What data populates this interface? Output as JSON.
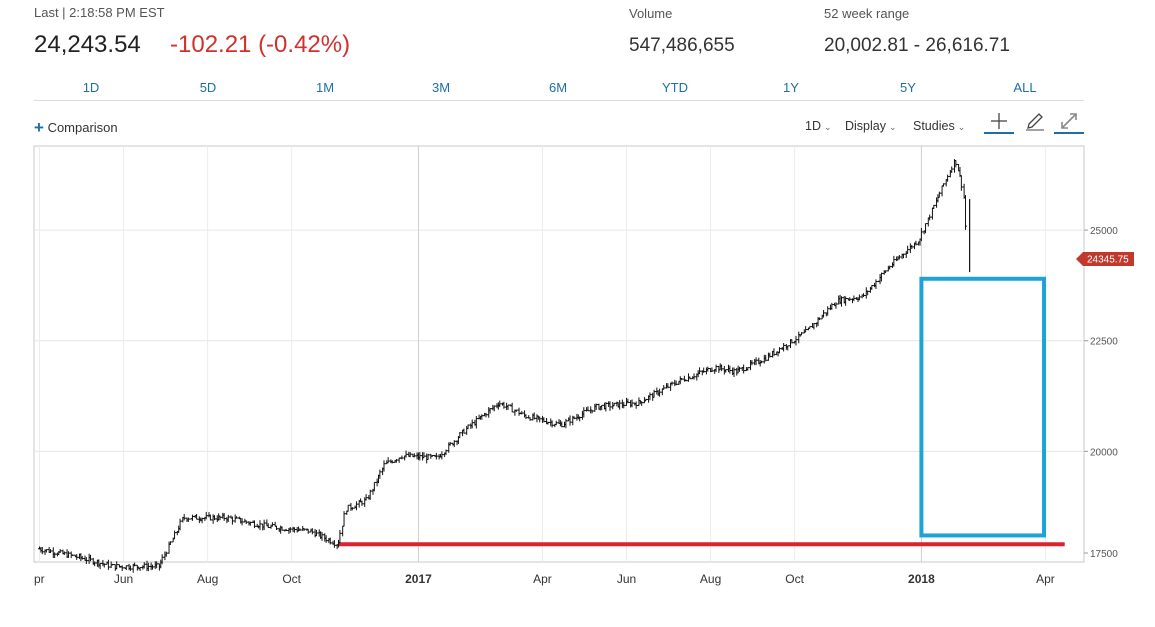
{
  "header": {
    "last_label": "Last | 2:18:58 PM EST",
    "price": "24,243.54",
    "change": "-102.21 (-0.42%)",
    "volume_label": "Volume",
    "volume": "547,486,655",
    "range_label": "52 week range",
    "range": "20,002.81 - 26,616.71"
  },
  "ranges": [
    "1D",
    "5D",
    "1M",
    "3M",
    "6M",
    "YTD",
    "1Y",
    "5Y",
    "ALL"
  ],
  "toolbar": {
    "comparison": "Comparison",
    "interval": "1D",
    "display": "Display",
    "studies": "Studies"
  },
  "colors": {
    "change": "#d0312d",
    "accent": "#1d6fa5",
    "price_tag": "#c0392b",
    "annotation_box": "#1ea3d8",
    "annotation_line": "#d9232e"
  },
  "chart_data": {
    "type": "line",
    "y_ticks": [
      "25000",
      "22500",
      "20000",
      "17500"
    ],
    "x_ticks": [
      "pr",
      "Jun",
      "Aug",
      "Oct",
      "2017",
      "Apr",
      "Jun",
      "Aug",
      "Oct",
      "2018",
      "Apr"
    ],
    "ylim": [
      17500,
      26900
    ],
    "price_tag": "24345.75",
    "series": [
      {
        "x": [
          "2016-04-01",
          "2016-05-01",
          "2016-05-25",
          "2016-06-27",
          "2016-07-15",
          "2016-08-15",
          "2016-09-15",
          "2016-10-15",
          "2016-11-04",
          "2016-11-10",
          "2016-11-25",
          "2016-12-08",
          "2016-12-20",
          "2017-01-15",
          "2017-02-05",
          "2017-03-01",
          "2017-03-20",
          "2017-04-15",
          "2017-05-10",
          "2017-06-10",
          "2017-07-10",
          "2017-08-05",
          "2017-08-20",
          "2017-09-10",
          "2017-10-10",
          "2017-11-01",
          "2017-11-20",
          "2017-12-10",
          "2017-12-31",
          "2018-01-10",
          "2018-01-26",
          "2018-02-01",
          "2018-02-05"
        ],
        "y": [
          17800,
          17600,
          17400,
          17400,
          18500,
          18500,
          18300,
          18200,
          17900,
          18700,
          18900,
          19700,
          19900,
          19850,
          20500,
          21100,
          20800,
          20600,
          21000,
          21100,
          21600,
          21900,
          21800,
          22100,
          22700,
          23400,
          23500,
          24200,
          24800,
          25500,
          26600,
          25900,
          24100
        ]
      }
    ]
  },
  "annotations": {
    "box": {
      "x0": "2018-01-01",
      "x1": "2018-03-31",
      "y_top": 23900,
      "y_bottom": 18100
    },
    "support_line": {
      "x0": "2016-11-04",
      "x1": "2018-04-15",
      "y": 17900
    }
  }
}
